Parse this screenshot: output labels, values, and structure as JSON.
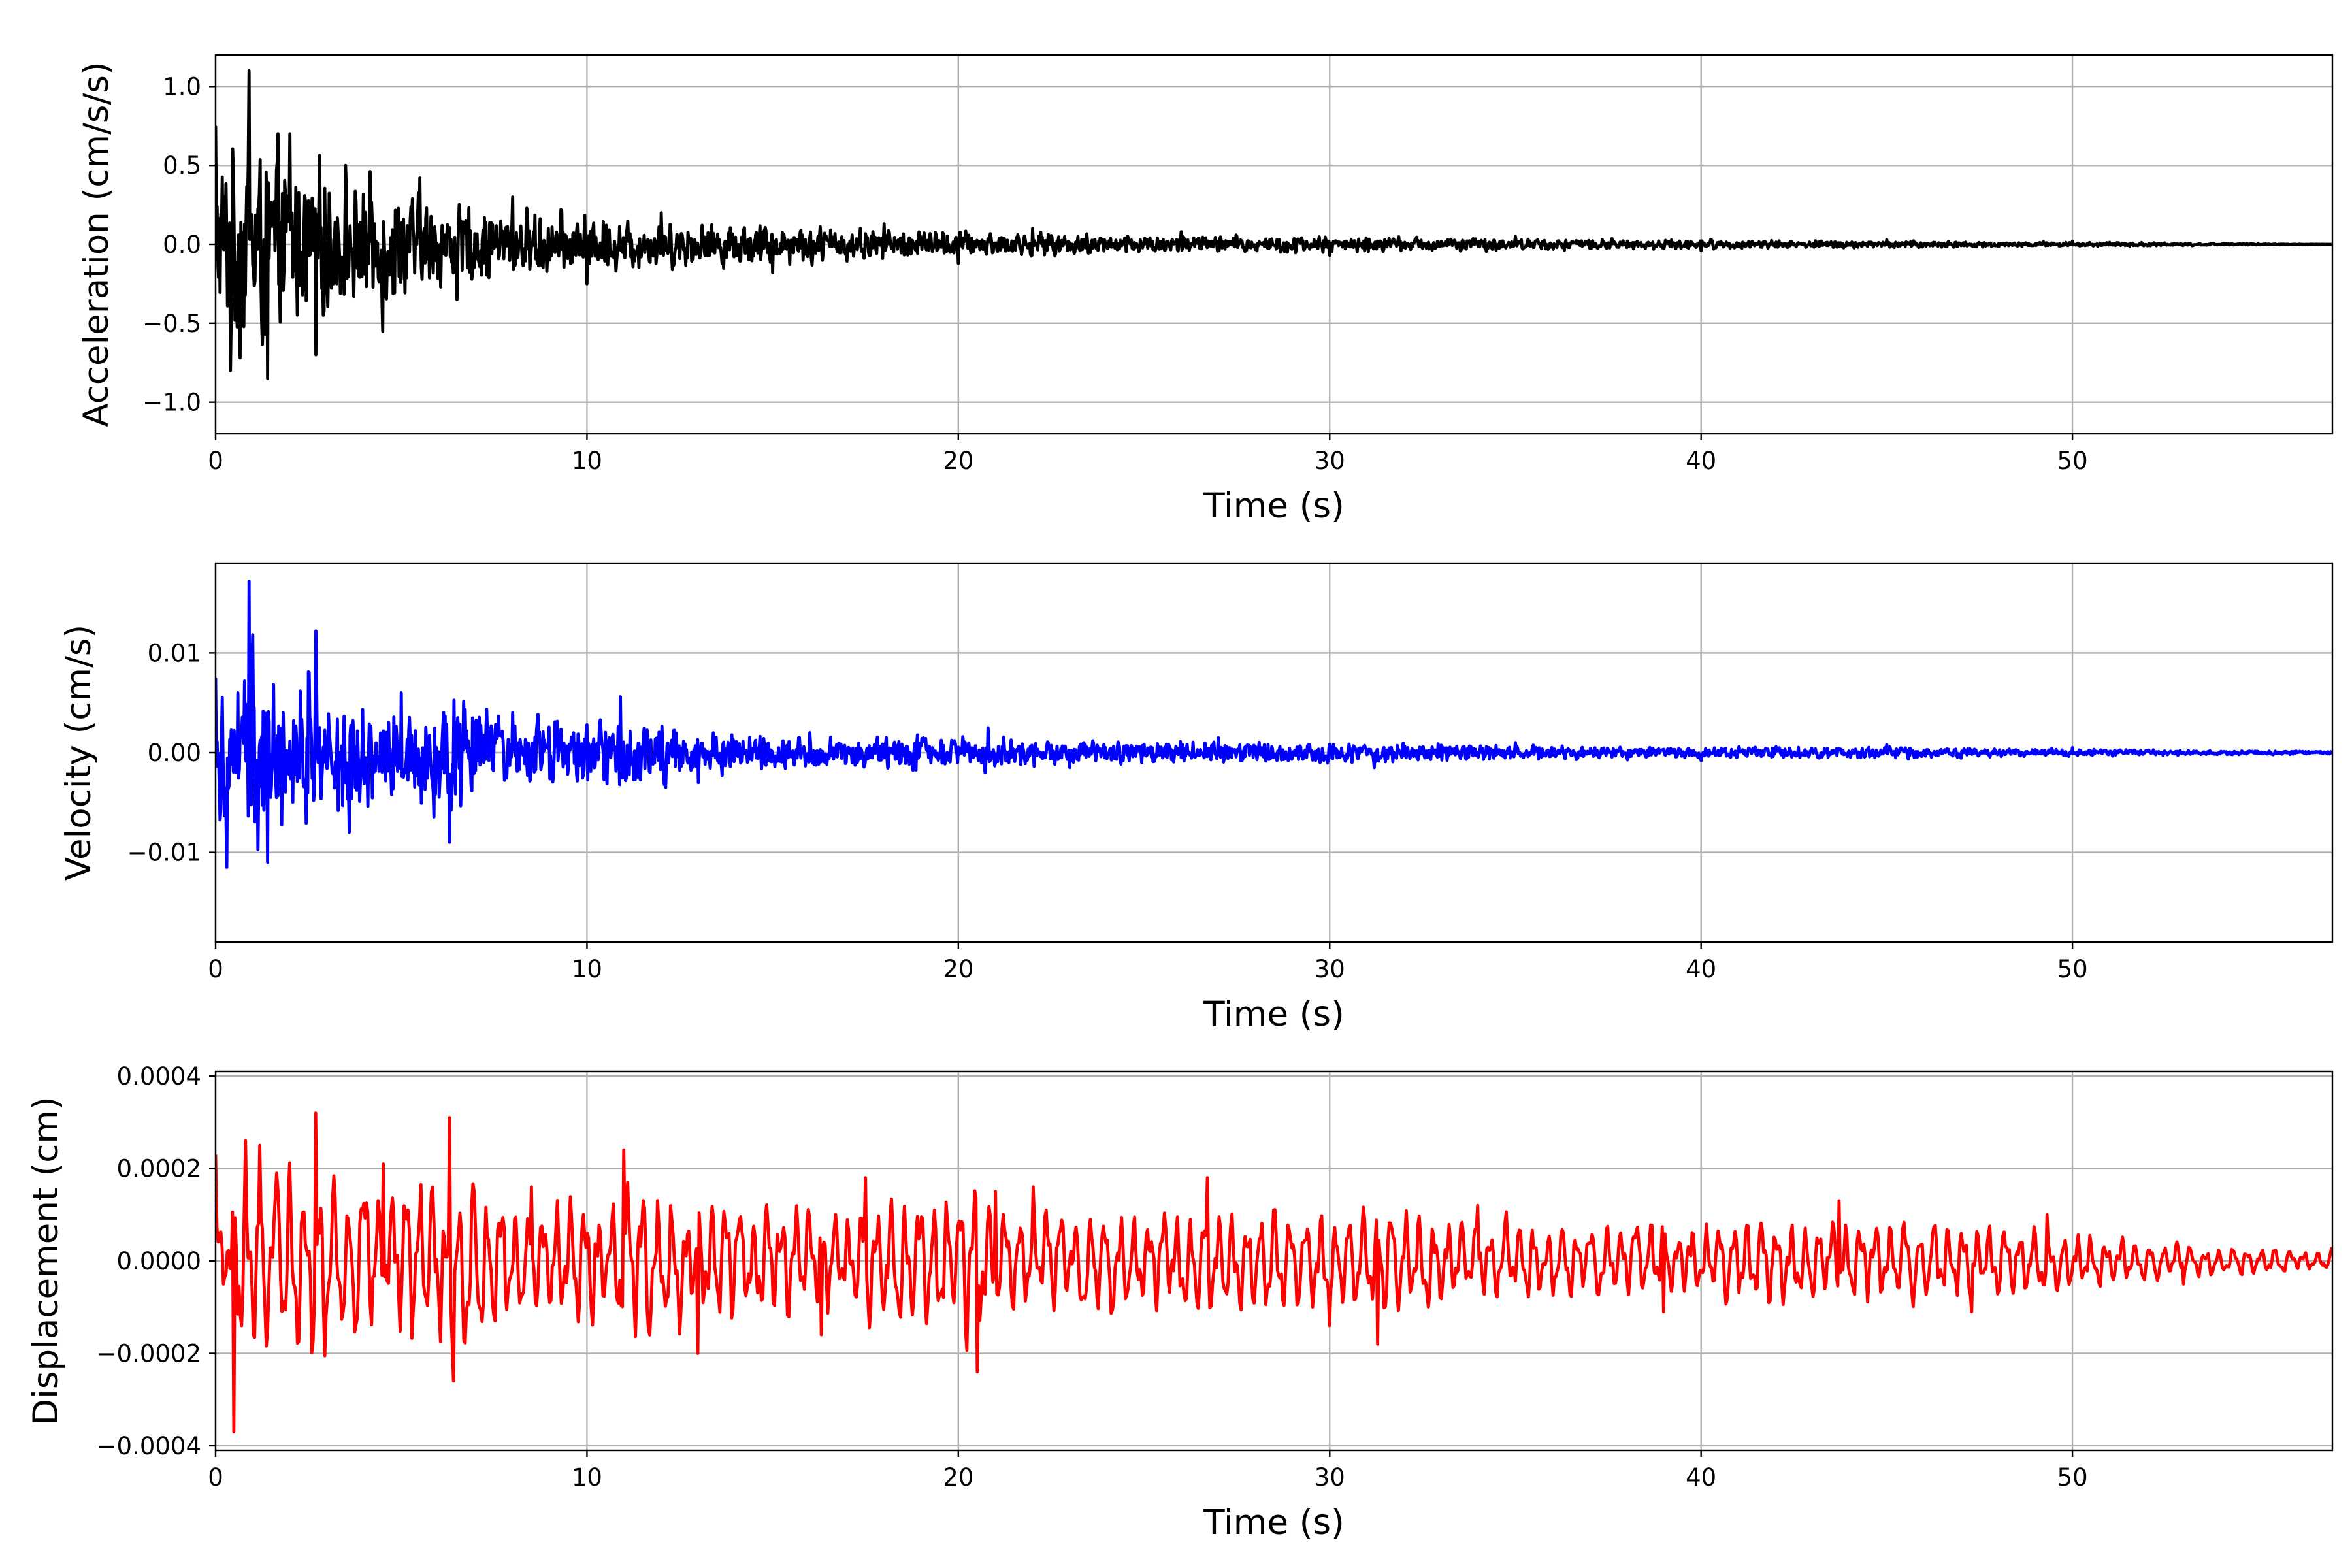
{
  "chart_data": [
    {
      "type": "line",
      "title": "",
      "xlabel": "Time (s)",
      "ylabel": "Acceleration (cm/s/s)",
      "xlim": [
        0,
        57
      ],
      "ylim": [
        -1.2,
        1.2
      ],
      "xticks": [
        0,
        10,
        20,
        30,
        40,
        50
      ],
      "xtick_labels": [
        "0",
        "10",
        "20",
        "30",
        "40",
        "50"
      ],
      "yticks": [
        1.0,
        0.5,
        0.0,
        -0.5,
        -1.0
      ],
      "ytick_labels": [
        "1.0",
        "0.5",
        "0.0",
        "−0.5",
        "−1.0"
      ],
      "grid": true,
      "color": "#000000",
      "series": [
        {
          "x": [
            0,
            0.4,
            0.9,
            1.4,
            2.0,
            2.7,
            3.5,
            4.5,
            5.5,
            6.5,
            8.0,
            10.0,
            12.0,
            15.0,
            18.0,
            20.0,
            22.0,
            26.0,
            30.0,
            35.0,
            40.0,
            45.0,
            50.0,
            57.0
          ],
          "y": [
            0.75,
            -0.8,
            1.1,
            -0.85,
            0.7,
            -0.7,
            0.5,
            -0.55,
            0.42,
            -0.35,
            0.3,
            -0.25,
            0.2,
            -0.18,
            0.13,
            -0.12,
            0.1,
            0.08,
            -0.07,
            0.05,
            -0.04,
            0.03,
            0.02,
            0.0
          ]
        }
      ]
    },
    {
      "type": "line",
      "title": "",
      "xlabel": "Time (s)",
      "ylabel": "Velocity (cm/s)",
      "xlim": [
        0,
        57
      ],
      "ylim": [
        -0.019,
        0.019
      ],
      "xticks": [
        0,
        10,
        20,
        30,
        40,
        50
      ],
      "xtick_labels": [
        "0",
        "10",
        "20",
        "30",
        "40",
        "50"
      ],
      "yticks": [
        0.01,
        0.0,
        -0.01
      ],
      "ytick_labels": [
        "0.01",
        "0.00",
        "−0.01"
      ],
      "grid": true,
      "color": "#0000ff",
      "series": [
        {
          "x": [
            0,
            0.3,
            0.6,
            0.9,
            1.4,
            2.7,
            3.6,
            5.0,
            6.3,
            8.0,
            10.9,
            13.0,
            16.0,
            20.8,
            23.0,
            27.0,
            31.2,
            35.0,
            40.0,
            45.0,
            50.0,
            57.0
          ],
          "y": [
            0.0075,
            -0.0115,
            0.006,
            0.0172,
            -0.011,
            0.0122,
            -0.008,
            0.006,
            -0.009,
            0.004,
            0.0056,
            -0.003,
            0.002,
            0.0025,
            -0.0015,
            0.0015,
            -0.0015,
            0.001,
            -0.0008,
            0.0008,
            0.0005,
            0.0002
          ]
        }
      ]
    },
    {
      "type": "line",
      "title": "",
      "xlabel": "Time (s)",
      "ylabel": "Displacement (cm)",
      "xlim": [
        0,
        57
      ],
      "ylim": [
        -0.00041,
        0.00041
      ],
      "xticks": [
        0,
        10,
        20,
        30,
        40,
        50
      ],
      "xtick_labels": [
        "0",
        "10",
        "20",
        "30",
        "40",
        "50"
      ],
      "yticks": [
        0.0004,
        0.0002,
        0.0,
        -0.0002,
        -0.0004
      ],
      "ytick_labels": [
        "0.0004",
        "0.0002",
        "0.0000",
        "−0.0002",
        "−0.0004"
      ],
      "grid": true,
      "color": "#ff0000",
      "series": [
        {
          "x": [
            0,
            0.2,
            0.5,
            0.8,
            1.2,
            2.7,
            4.5,
            6.3,
            6.4,
            8.5,
            11.0,
            13.0,
            16.3,
            17.5,
            20.5,
            21.0,
            22.0,
            26.7,
            30.0,
            31.3,
            34.0,
            39.0,
            43.7,
            47.3,
            49.3,
            53.0,
            57.0
          ],
          "y": [
            0.00023,
            -5e-05,
            -0.00037,
            0.00026,
            0.00025,
            0.00032,
            0.00021,
            0.00031,
            -0.00026,
            0.00016,
            0.00024,
            -0.0002,
            -0.00016,
            0.00018,
            -0.00024,
            0.00015,
            0.00016,
            0.00018,
            -0.00014,
            -0.00018,
            0.00012,
            -0.00011,
            0.00013,
            -0.00011,
            0.0001,
            -5e-05,
            3e-05
          ]
        }
      ]
    }
  ]
}
